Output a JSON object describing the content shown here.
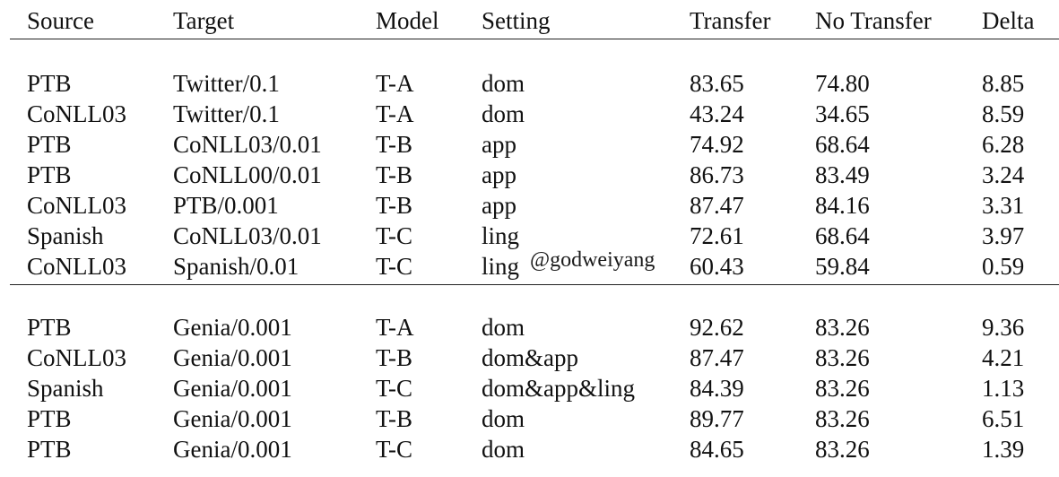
{
  "table": {
    "headers": [
      "Source",
      "Target",
      "Model",
      "Setting",
      "Transfer",
      "No Transfer",
      "Delta"
    ],
    "groups": [
      {
        "rows": [
          [
            "PTB",
            "Twitter/0.1",
            "T-A",
            "dom",
            "83.65",
            "74.80",
            "8.85"
          ],
          [
            "CoNLL03",
            "Twitter/0.1",
            "T-A",
            "dom",
            "43.24",
            "34.65",
            "8.59"
          ],
          [
            "PTB",
            "CoNLL03/0.01",
            "T-B",
            "app",
            "74.92",
            "68.64",
            "6.28"
          ],
          [
            "PTB",
            "CoNLL00/0.01",
            "T-B",
            "app",
            "86.73",
            "83.49",
            "3.24"
          ],
          [
            "CoNLL03",
            "PTB/0.001",
            "T-B",
            "app",
            "87.47",
            "84.16",
            "3.31"
          ],
          [
            "Spanish",
            "CoNLL03/0.01",
            "T-C",
            "ling",
            "72.61",
            "68.64",
            "3.97"
          ],
          [
            "CoNLL03",
            "Spanish/0.01",
            "T-C",
            "ling",
            "60.43",
            "59.84",
            "0.59"
          ]
        ]
      },
      {
        "rows": [
          [
            "PTB",
            "Genia/0.001",
            "T-A",
            "dom",
            "92.62",
            "83.26",
            "9.36"
          ],
          [
            "CoNLL03",
            "Genia/0.001",
            "T-B",
            "dom&app",
            "87.47",
            "83.26",
            "4.21"
          ],
          [
            "Spanish",
            "Genia/0.001",
            "T-C",
            "dom&app&ling",
            "84.39",
            "83.26",
            "1.13"
          ],
          [
            "PTB",
            "Genia/0.001",
            "T-B",
            "dom",
            "89.77",
            "83.26",
            "6.51"
          ],
          [
            "PTB",
            "Genia/0.001",
            "T-C",
            "dom",
            "84.65",
            "83.26",
            "1.39"
          ]
        ]
      }
    ]
  },
  "watermark": "@godweiyang"
}
